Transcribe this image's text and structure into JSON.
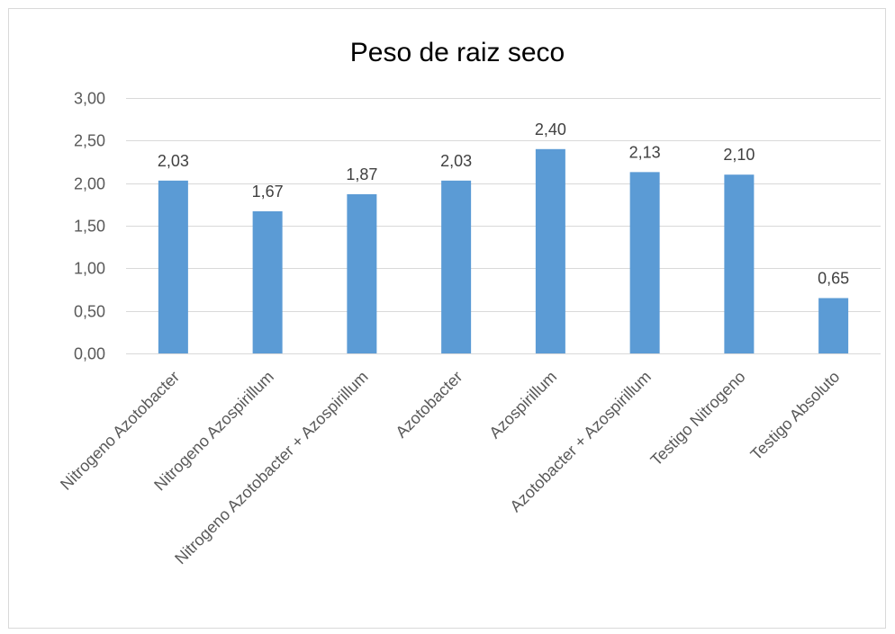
{
  "chart_data": {
    "type": "bar",
    "title": "Peso de raiz seco",
    "xlabel": "",
    "ylabel": "",
    "categories": [
      "Nitrogeno Azotobacter",
      "Nitrogeno Azospirillum",
      "Nitrogeno Azotobacter + Azospirillum",
      "Azotobacter",
      "Azospirillum",
      "Azotobacter + Azospirillum",
      "Testigo Nitrogeno",
      "Testigo Absoluto"
    ],
    "values": [
      2.03,
      1.67,
      1.87,
      2.03,
      2.4,
      2.13,
      2.1,
      0.65
    ],
    "data_labels": [
      "2,03",
      "1,67",
      "1,87",
      "2,03",
      "2,40",
      "2,13",
      "2,10",
      "0,65"
    ],
    "ylim": [
      0,
      3
    ],
    "yticks": [
      0,
      0.5,
      1,
      1.5,
      2,
      2.5,
      3
    ],
    "ytick_labels": [
      "0,00",
      "0,50",
      "1,00",
      "1,50",
      "2,00",
      "2,50",
      "3,00"
    ],
    "grid": true,
    "bar_color": "#5b9bd5",
    "legend": "none"
  }
}
